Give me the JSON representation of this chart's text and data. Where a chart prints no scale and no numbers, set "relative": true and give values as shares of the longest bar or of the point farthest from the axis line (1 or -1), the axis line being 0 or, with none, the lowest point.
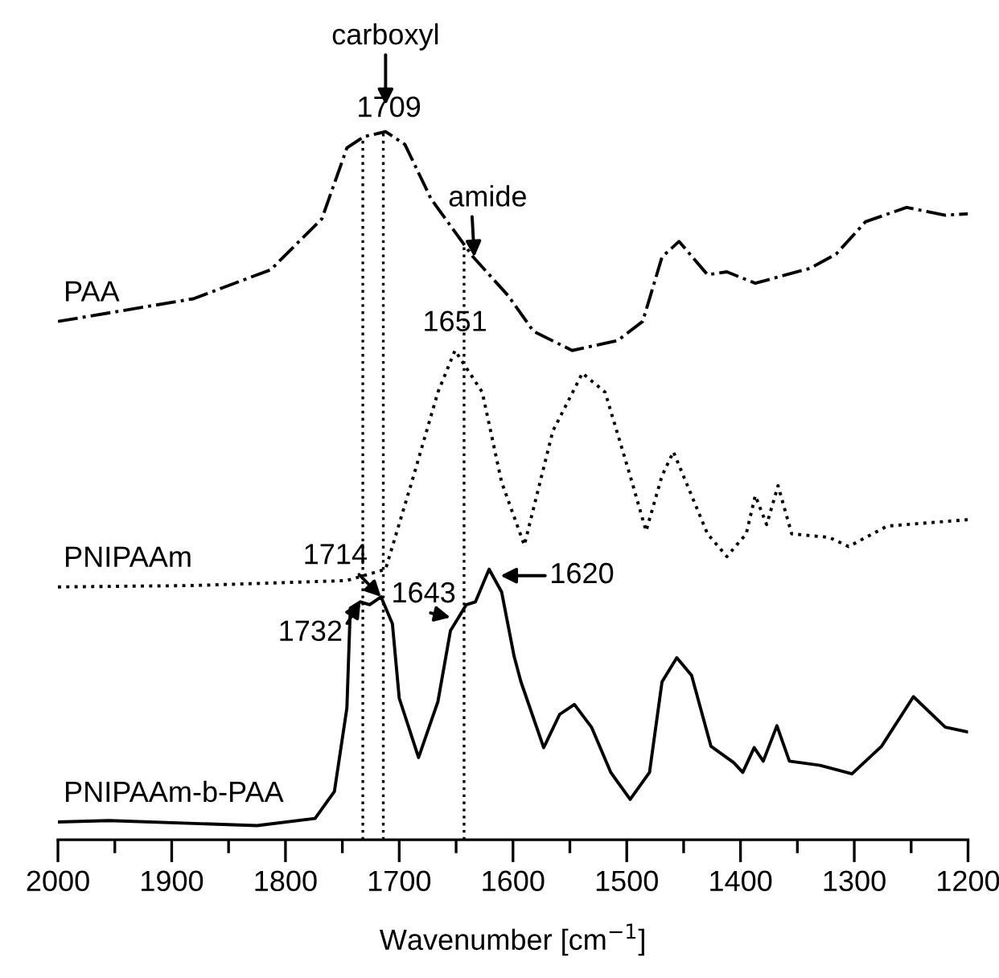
{
  "chart_data": {
    "type": "line",
    "relative": true,
    "xlabel": "Wavenumber [cm$^{−1}$]",
    "xlim": [
      2000,
      1200
    ],
    "xticks": [
      2000,
      1900,
      1800,
      1700,
      1600,
      1500,
      1400,
      1300,
      1200
    ],
    "grid": false,
    "legend": false,
    "marker": "none",
    "tick_labels": "x",
    "series": [
      {
        "name": "PAA",
        "color": "#000000",
        "line_style": "dashdot",
        "x": [
          2000,
          1881,
          1813,
          1768,
          1746,
          1731,
          1712,
          1695,
          1672,
          1635,
          1604,
          1582,
          1548,
          1508,
          1486,
          1469,
          1454,
          1429,
          1412,
          1387,
          1339,
          1316,
          1290,
          1254,
          1220,
          1200
        ],
        "values": [
          0.732,
          0.764,
          0.805,
          0.877,
          0.977,
          0.993,
          1.0,
          0.982,
          0.905,
          0.823,
          0.768,
          0.718,
          0.691,
          0.705,
          0.732,
          0.823,
          0.845,
          0.798,
          0.802,
          0.786,
          0.807,
          0.827,
          0.873,
          0.893,
          0.882,
          0.884
        ]
      },
      {
        "name": "PNIPAAm",
        "color": "#000000",
        "line_style": "dotted",
        "x": [
          2000,
          1881,
          1746,
          1712,
          1689,
          1666,
          1651,
          1627,
          1610,
          1590,
          1565,
          1539,
          1519,
          1497,
          1483,
          1469,
          1459,
          1443,
          1429,
          1412,
          1395,
          1387,
          1377,
          1367,
          1355,
          1322,
          1305,
          1271,
          1200
        ],
        "values": [
          0.357,
          0.359,
          0.366,
          0.382,
          0.505,
          0.632,
          0.691,
          0.632,
          0.505,
          0.416,
          0.577,
          0.659,
          0.632,
          0.514,
          0.436,
          0.514,
          0.548,
          0.486,
          0.432,
          0.4,
          0.432,
          0.486,
          0.445,
          0.5,
          0.432,
          0.427,
          0.414,
          0.443,
          0.452
        ]
      },
      {
        "name": "PNIPAAm-b-PAA",
        "color": "#000000",
        "line_style": "solid",
        "x": [
          2000,
          1955,
          1825,
          1774,
          1757,
          1746,
          1743,
          1734,
          1726,
          1716,
          1706,
          1700,
          1683,
          1666,
          1655,
          1641,
          1633,
          1621,
          1610,
          1599,
          1593,
          1573,
          1559,
          1546,
          1531,
          1514,
          1497,
          1480,
          1469,
          1456,
          1443,
          1426,
          1406,
          1398,
          1388,
          1380,
          1368,
          1357,
          1330,
          1302,
          1276,
          1248,
          1220,
          1200
        ],
        "values": [
          0.025,
          0.027,
          0.02,
          0.03,
          0.068,
          0.186,
          0.327,
          0.336,
          0.332,
          0.343,
          0.305,
          0.2,
          0.116,
          0.195,
          0.295,
          0.332,
          0.336,
          0.382,
          0.35,
          0.259,
          0.223,
          0.13,
          0.177,
          0.191,
          0.159,
          0.095,
          0.057,
          0.095,
          0.223,
          0.257,
          0.232,
          0.132,
          0.109,
          0.095,
          0.13,
          0.111,
          0.161,
          0.111,
          0.105,
          0.093,
          0.132,
          0.202,
          0.159,
          0.152
        ]
      }
    ],
    "ref_lines": [
      {
        "axis": "x",
        "value": 1732,
        "line_style": "dotted"
      },
      {
        "axis": "x",
        "value": 1714,
        "line_style": "dotted"
      },
      {
        "axis": "x",
        "value": 1643,
        "line_style": "dotted"
      }
    ],
    "annotations": [
      "carboxyl",
      {
        "text": "1709",
        "x": 1709,
        "y": 1.0
      },
      {
        "text": "amide",
        "x": 1634,
        "y": 0.823
      },
      {
        "text": "1651",
        "x": 1651,
        "y": 0.691
      },
      {
        "text": "1714",
        "x": 1716,
        "y": 0.343
      },
      {
        "text": "1732",
        "x": 1734,
        "y": 0.336
      },
      {
        "text": "1643",
        "x": 1655,
        "y": 0.314
      },
      {
        "text": "1620",
        "x": 1611,
        "y": 0.373
      }
    ]
  }
}
